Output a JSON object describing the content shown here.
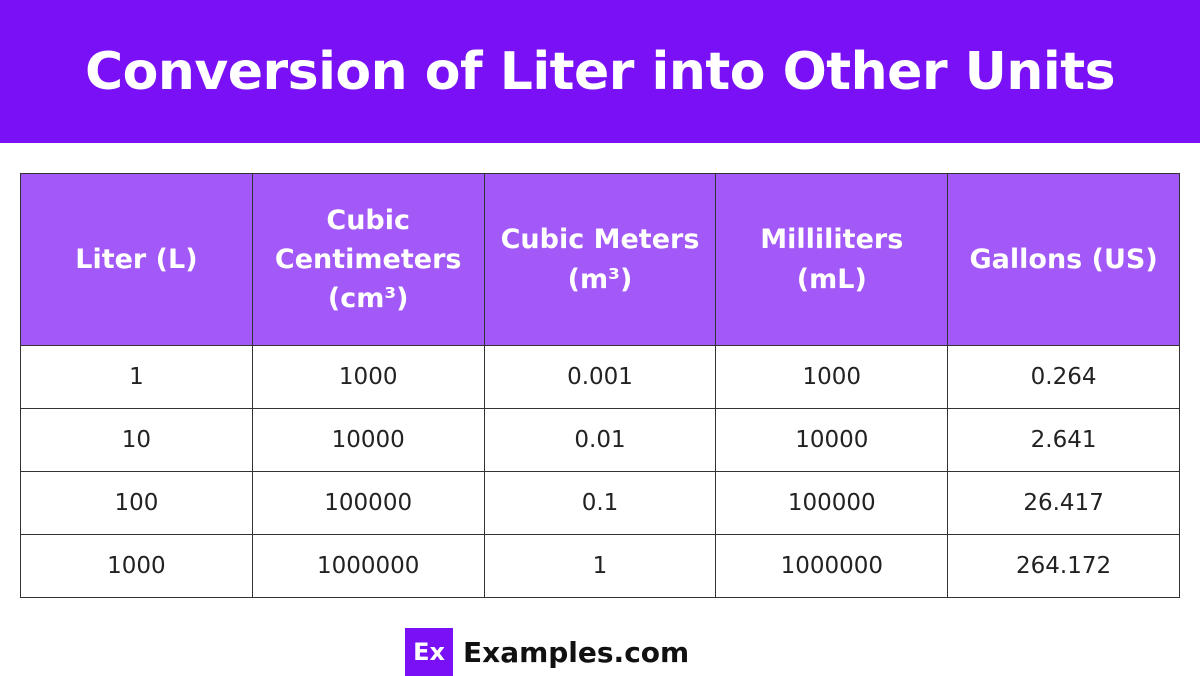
{
  "header": {
    "title": "Conversion of Liter into Other Units"
  },
  "table": {
    "columns": [
      "Liter (L)",
      "Cubic Centimeters (cm³)",
      "Cubic Meters (m³)",
      "Milliliters (mL)",
      "Gallons (US)"
    ],
    "rows": [
      [
        "1",
        "1000",
        "0.001",
        "1000",
        "0.264"
      ],
      [
        "10",
        "10000",
        "0.01",
        "10000",
        "2.641"
      ],
      [
        "100",
        "100000",
        "0.1",
        "100000",
        "26.417"
      ],
      [
        "1000",
        "1000000",
        "1",
        "1000000",
        "264.172"
      ]
    ]
  },
  "footer": {
    "logo": "Ex",
    "brand": "Examples.com"
  }
}
